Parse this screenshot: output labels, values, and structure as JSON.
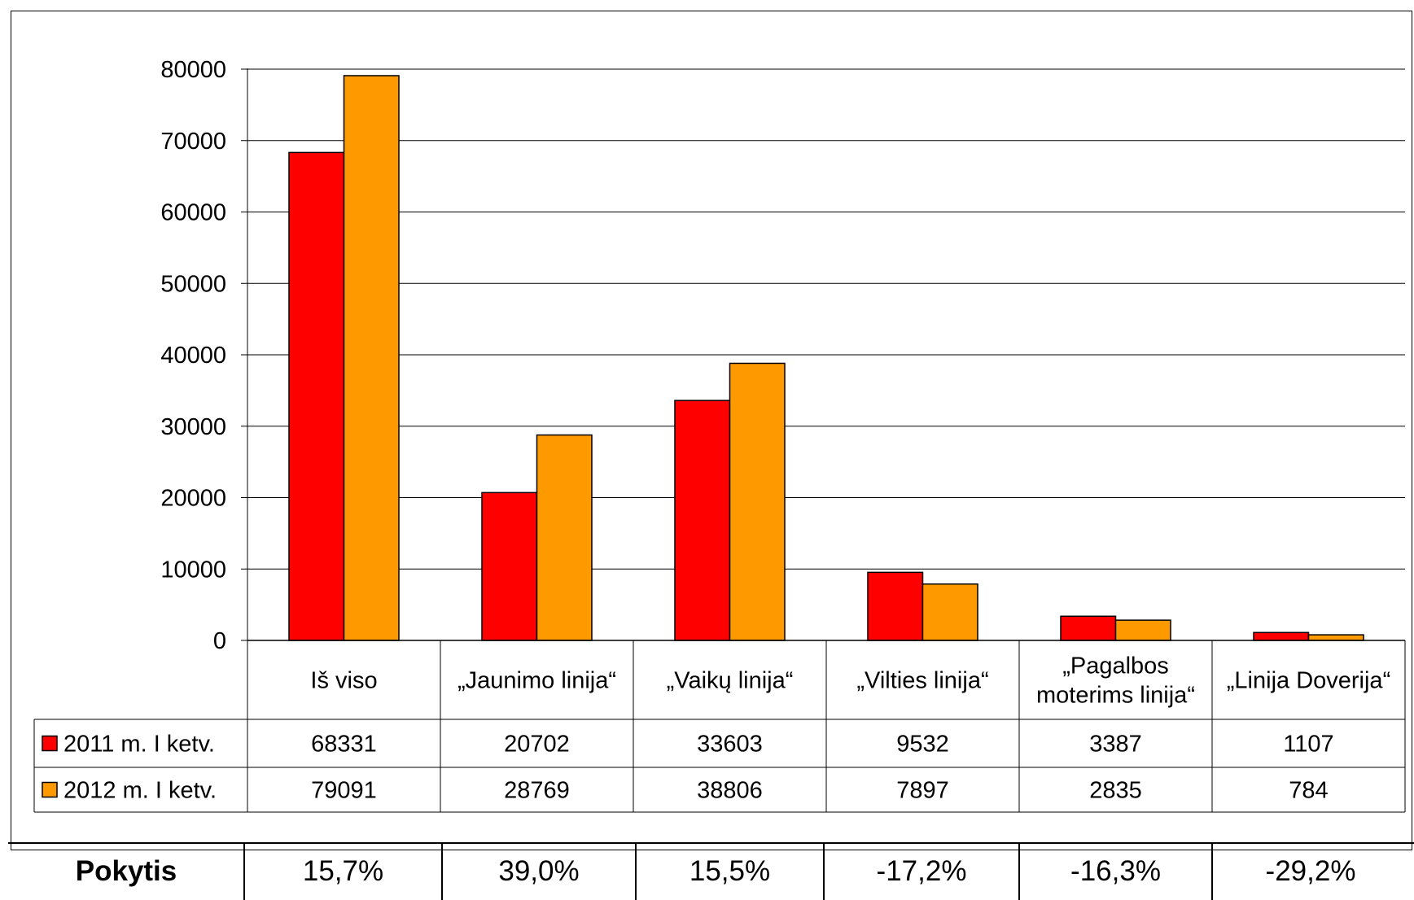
{
  "chart_data": {
    "type": "bar",
    "categories": [
      "Iš viso",
      "„Jaunimo linija“",
      "„Vaikų linija“",
      "„Vilties linija“",
      "„Pagalbos moterims linija“",
      "„Linija Doverija“"
    ],
    "category_lines": [
      [
        "Iš viso"
      ],
      [
        "„Jaunimo linija“"
      ],
      [
        "„Vaikų linija“"
      ],
      [
        "„Vilties linija“"
      ],
      [
        "„Pagalbos",
        "moterims linija“"
      ],
      [
        "„Linija Doverija“"
      ]
    ],
    "series": [
      {
        "name": "2011 m. I ketv.",
        "values": [
          68331,
          20702,
          33603,
          9532,
          3387,
          1107
        ],
        "color": "#ff0000"
      },
      {
        "name": "2012 m. I ketv.",
        "values": [
          79091,
          28769,
          38806,
          7897,
          2835,
          784
        ],
        "color": "#ff9900"
      }
    ],
    "ylim": [
      0,
      80000
    ],
    "yticks": [
      0,
      10000,
      20000,
      30000,
      40000,
      50000,
      60000,
      70000,
      80000
    ],
    "grid": true,
    "legend": "data-table-left",
    "title": "",
    "xlabel": "",
    "ylabel": ""
  },
  "change_table": {
    "label": "Pokytis",
    "values": [
      "15,7%",
      "39,0%",
      "15,5%",
      "-17,2%",
      "-16,3%",
      "-29,2%"
    ]
  }
}
